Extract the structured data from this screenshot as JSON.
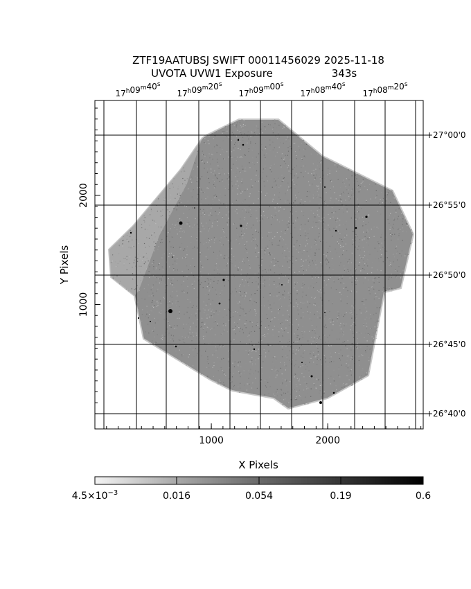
{
  "chart_data": {
    "type": "heatmap",
    "title_line1": "ZTF19AATUBSJ SWIFT 00011456029 2025-11-18",
    "title_line2_left": "UVOTA UVW1 Exposure",
    "title_line2_right": "343s",
    "xlabel": "X Pixels",
    "ylabel": "Y Pixels",
    "xlim": [
      0,
      2820
    ],
    "ylim": [
      -140,
      2870
    ],
    "x_ticks": [
      1000,
      2000
    ],
    "x_tick_labels": [
      "1000",
      "2000"
    ],
    "y_ticks": [
      1000,
      2000
    ],
    "y_tick_labels": [
      "1000",
      "2000"
    ],
    "ra_labels": [
      {
        "h": "17",
        "m": "09",
        "s": "40"
      },
      {
        "h": "17",
        "m": "09",
        "s": "20"
      },
      {
        "h": "17",
        "m": "09",
        "s": "00"
      },
      {
        "h": "17",
        "m": "08",
        "s": "40"
      },
      {
        "h": "17",
        "m": "08",
        "s": "20"
      }
    ],
    "dec_labels": [
      "+27°00'0",
      "+26°55'0",
      "+26°50'0",
      "+26°45'0",
      "+26°40'0"
    ],
    "colorbar": {
      "tick_values": [
        0.0045,
        0.016,
        0.054,
        0.19,
        0.6
      ],
      "tick_labels": [
        "4.5×10",
        "0.016",
        "0.054",
        "0.19",
        "0.6"
      ],
      "first_label_exponent": "−3"
    },
    "grid": true
  }
}
